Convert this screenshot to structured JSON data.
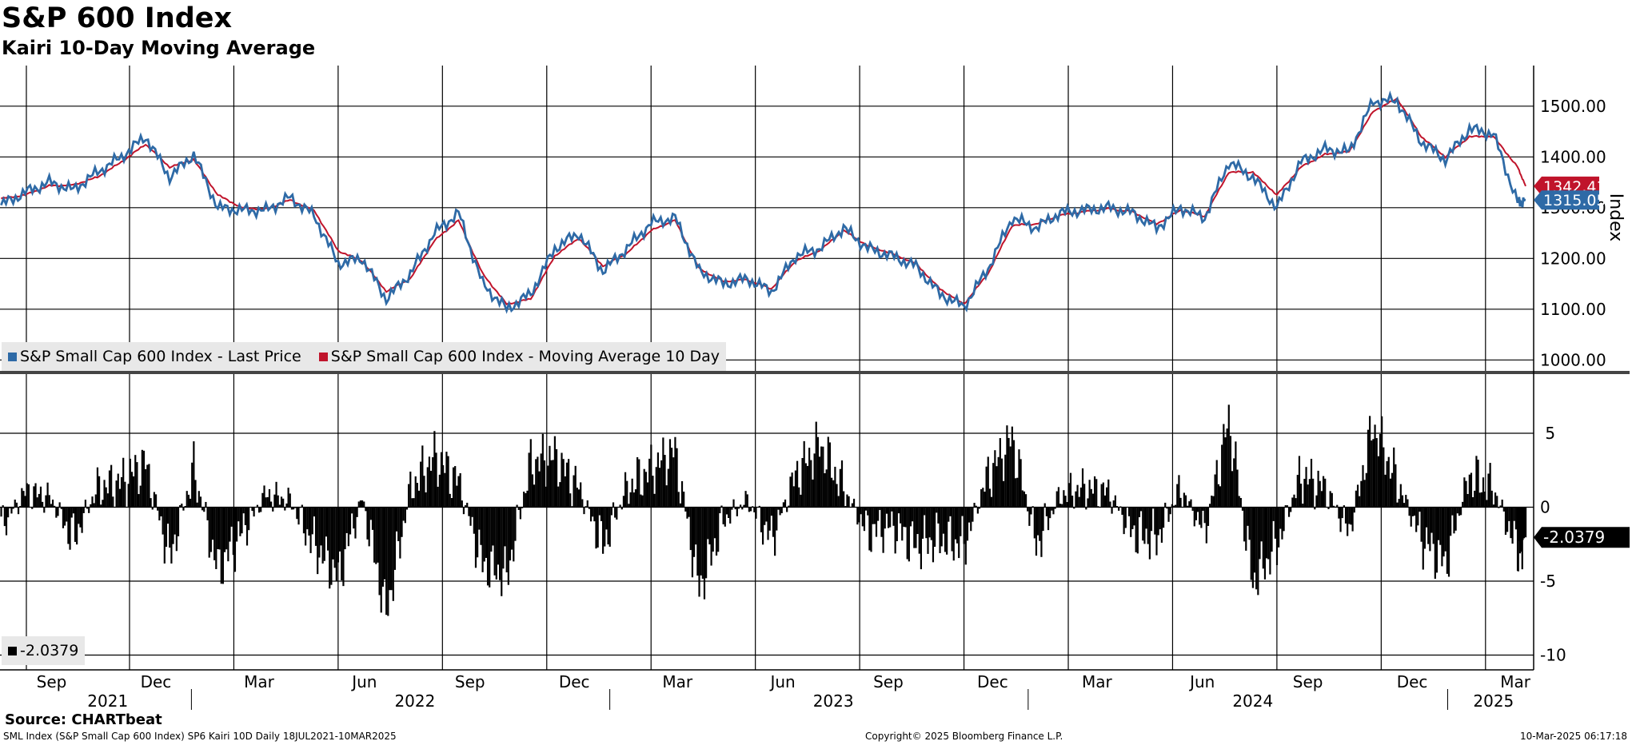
{
  "header": {
    "title": "S&P 600 Index",
    "subtitle": "Kairi 10-Day Moving Average"
  },
  "footer": {
    "source": "Source: CHARTbeat",
    "description": "SML Index (S&P Small Cap 600 Index) SP6 Kairi 10D  Daily 18JUL2021-10MAR2025",
    "copyright": "Copyright© 2025 Bloomberg Finance L.P.",
    "timestamp": "10-Mar-2025 06:17:18"
  },
  "colors": {
    "last_price": "#2e6aa6",
    "moving_average": "#c0142b",
    "kairi_bars": "#000000",
    "grid": "#000000"
  },
  "chart_data": [
    {
      "type": "line",
      "panel": "top",
      "ylabel": "Index",
      "ylim": [
        980,
        1580
      ],
      "yticks": [
        "1000.00",
        "1100.00",
        "1200.00",
        "1300.00",
        "1400.00",
        "1500.00"
      ],
      "grid": true,
      "legend_position": "bottom-left",
      "last_value_labels": [
        "1342.41",
        "1315.05"
      ],
      "x_dates": [
        "2021-07-19",
        "2021-08-09",
        "2021-08-30",
        "2021-09-20",
        "2021-10-11",
        "2021-11-01",
        "2021-11-22",
        "2021-12-13",
        "2022-01-03",
        "2022-01-24",
        "2022-02-14",
        "2022-03-07",
        "2022-03-28",
        "2022-04-18",
        "2022-05-09",
        "2022-05-30",
        "2022-06-20",
        "2022-07-11",
        "2022-08-01",
        "2022-08-22",
        "2022-09-12",
        "2022-10-03",
        "2022-10-24",
        "2022-11-14",
        "2022-12-05",
        "2022-12-26",
        "2023-01-16",
        "2023-02-06",
        "2023-02-27",
        "2023-03-20",
        "2023-04-10",
        "2023-05-01",
        "2023-05-22",
        "2023-06-12",
        "2023-07-03",
        "2023-07-24",
        "2023-08-14",
        "2023-09-04",
        "2023-09-25",
        "2023-10-16",
        "2023-11-06",
        "2023-11-27",
        "2023-12-18",
        "2024-01-08",
        "2024-01-29",
        "2024-02-19",
        "2024-03-11",
        "2024-04-01",
        "2024-04-22",
        "2024-05-13",
        "2024-06-03",
        "2024-06-24",
        "2024-07-15",
        "2024-08-05",
        "2024-08-26",
        "2024-09-16",
        "2024-10-07",
        "2024-10-28",
        "2024-11-18",
        "2024-12-09",
        "2024-12-30",
        "2025-01-20",
        "2025-02-10",
        "2025-03-03",
        "2025-03-10"
      ],
      "series": [
        {
          "name": "S&P Small Cap 600 Index - Last Price",
          "values": [
            1305,
            1330,
            1350,
            1335,
            1370,
            1400,
            1440,
            1360,
            1405,
            1300,
            1295,
            1295,
            1320,
            1285,
            1190,
            1200,
            1120,
            1170,
            1250,
            1290,
            1150,
            1100,
            1130,
            1220,
            1250,
            1175,
            1220,
            1270,
            1280,
            1175,
            1150,
            1160,
            1135,
            1205,
            1220,
            1260,
            1220,
            1205,
            1185,
            1130,
            1105,
            1180,
            1280,
            1260,
            1290,
            1295,
            1300,
            1290,
            1260,
            1300,
            1280,
            1390,
            1360,
            1300,
            1390,
            1415,
            1410,
            1510,
            1510,
            1430,
            1395,
            1455,
            1445,
            1310,
            1315.05
          ]
        },
        {
          "name": "S&P Small Cap 600 Index - Moving Average 10 Day",
          "values": [
            1318,
            1325,
            1343,
            1345,
            1360,
            1390,
            1425,
            1380,
            1395,
            1325,
            1300,
            1297,
            1315,
            1295,
            1215,
            1195,
            1135,
            1160,
            1235,
            1275,
            1170,
            1110,
            1120,
            1205,
            1240,
            1185,
            1210,
            1255,
            1275,
            1180,
            1155,
            1158,
            1140,
            1195,
            1215,
            1255,
            1225,
            1210,
            1190,
            1140,
            1110,
            1170,
            1265,
            1268,
            1285,
            1292,
            1298,
            1292,
            1268,
            1295,
            1283,
            1370,
            1370,
            1325,
            1380,
            1405,
            1410,
            1490,
            1515,
            1440,
            1400,
            1440,
            1440,
            1380,
            1342.41
          ]
        }
      ]
    },
    {
      "type": "bar",
      "panel": "bottom",
      "series_name": "SP6 Kairi 10D",
      "ylim": [
        -11,
        9
      ],
      "yticks": [
        "5",
        "0",
        "-5",
        "-10"
      ],
      "grid": true,
      "last_value_label": "-2.0379",
      "legend_position": "bottom-left",
      "x_labels": [
        "Sep",
        "Dec",
        "Mar",
        "Jun",
        "Sep",
        "Dec",
        "Mar",
        "Jun",
        "Sep",
        "Dec",
        "Mar",
        "Jun",
        "Sep",
        "Dec",
        "Mar"
      ],
      "year_labels": [
        "2021",
        "2022",
        "2023",
        "2024",
        "2025"
      ],
      "x_dates": [
        "2021-07-19",
        "2021-08-09",
        "2021-08-30",
        "2021-09-20",
        "2021-10-11",
        "2021-11-01",
        "2021-11-22",
        "2021-12-13",
        "2022-01-03",
        "2022-01-24",
        "2022-02-14",
        "2022-03-07",
        "2022-03-28",
        "2022-04-18",
        "2022-05-09",
        "2022-05-30",
        "2022-06-20",
        "2022-07-11",
        "2022-08-01",
        "2022-08-22",
        "2022-09-12",
        "2022-10-03",
        "2022-10-24",
        "2022-11-14",
        "2022-12-05",
        "2022-12-26",
        "2023-01-16",
        "2023-02-06",
        "2023-02-27",
        "2023-03-20",
        "2023-04-10",
        "2023-05-01",
        "2023-05-22",
        "2023-06-12",
        "2023-07-03",
        "2023-07-24",
        "2023-08-14",
        "2023-09-04",
        "2023-09-25",
        "2023-10-16",
        "2023-11-06",
        "2023-11-27",
        "2023-12-18",
        "2024-01-08",
        "2024-01-29",
        "2024-02-19",
        "2024-03-11",
        "2024-04-01",
        "2024-04-22",
        "2024-05-13",
        "2024-06-03",
        "2024-06-24",
        "2024-07-15",
        "2024-08-05",
        "2024-08-26",
        "2024-09-16",
        "2024-10-07",
        "2024-10-28",
        "2024-11-18",
        "2024-12-09",
        "2024-12-30",
        "2025-01-20",
        "2025-02-10",
        "2025-03-03",
        "2025-03-10"
      ],
      "values": [
        -1.5,
        1.2,
        0.8,
        -2.5,
        1.5,
        2.0,
        3.5,
        -4.0,
        3.0,
        -5.0,
        -2.0,
        1.0,
        0.5,
        -3.0,
        -5.5,
        0.8,
        -8.5,
        1.5,
        4.0,
        2.0,
        -4.5,
        -5.5,
        3.5,
        4.0,
        1.5,
        -3.0,
        1.5,
        3.0,
        4.5,
        -6.5,
        -1.0,
        0.5,
        -2.5,
        2.5,
        5.0,
        1.5,
        -2.0,
        -1.5,
        -3.0,
        -2.5,
        -3.0,
        2.5,
        5.5,
        -3.0,
        1.0,
        1.5,
        1.2,
        -2.0,
        -2.5,
        1.5,
        -2.0,
        7.0,
        -6.0,
        -3.0,
        2.5,
        1.5,
        -2.0,
        6.5,
        2.0,
        -2.5,
        -4.5,
        2.5,
        1.5,
        -3.5,
        -2.0379
      ]
    }
  ],
  "legend": {
    "top_last_price": "S&P Small Cap 600 Index - Last Price",
    "top_moving_average": "S&P Small Cap 600 Index - Moving Average 10 Day",
    "bottom_value": "-2.0379"
  }
}
